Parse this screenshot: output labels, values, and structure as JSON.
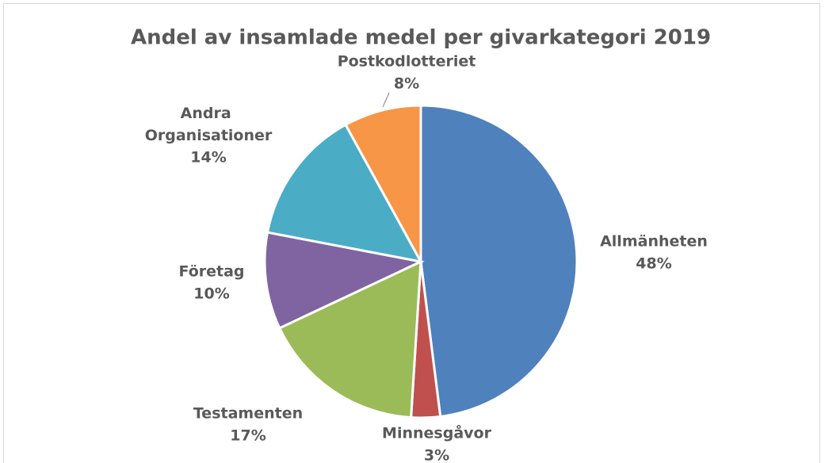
{
  "chart_data": {
    "type": "pie",
    "title": "Andel av insamlade medel per givarkategori 2019",
    "categories": [
      "Allmänheten",
      "Minnesgåvor",
      "Testamenten",
      "Företag",
      "Andra Organisationer",
      "Postkodlotteriet"
    ],
    "values": [
      48,
      3,
      17,
      10,
      14,
      8
    ],
    "value_labels": [
      "48%",
      "3%",
      "17%",
      "10%",
      "14%",
      "8%"
    ],
    "colors": [
      "#4f81bd",
      "#c0504d",
      "#9bbb59",
      "#8064a2",
      "#4bacc6",
      "#f79646"
    ]
  }
}
